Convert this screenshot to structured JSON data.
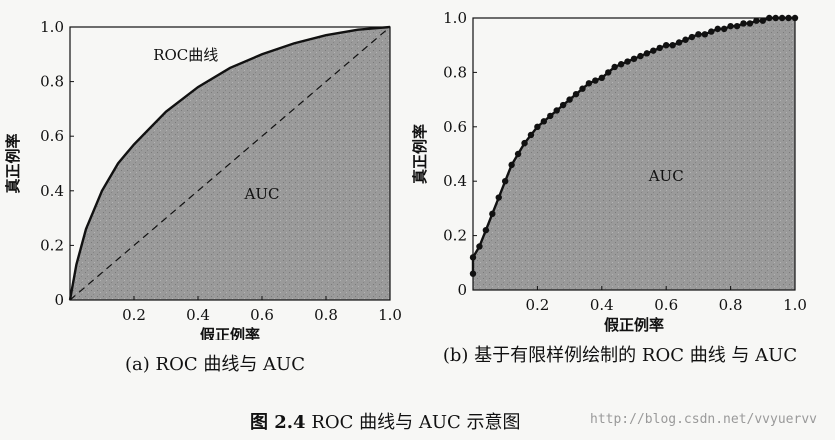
{
  "chart_data": [
    {
      "type": "area",
      "subcaption": "(a) ROC 曲线与 AUC",
      "xlabel": "假正例率",
      "ylabel": "真正例率",
      "xlim": [
        0,
        1
      ],
      "ylim": [
        0,
        1
      ],
      "xticks": [
        "0.2",
        "0.4",
        "0.6",
        "0.8",
        "1.0"
      ],
      "yticks": [
        "0",
        "0.2",
        "0.4",
        "0.6",
        "0.8",
        "1.0"
      ],
      "annotations": {
        "curve": "ROC曲线",
        "area": "AUC"
      },
      "series": [
        {
          "x": [
            0,
            0.02,
            0.05,
            0.1,
            0.15,
            0.2,
            0.3,
            0.4,
            0.5,
            0.6,
            0.7,
            0.8,
            0.9,
            1.0
          ],
          "y": [
            0,
            0.13,
            0.26,
            0.4,
            0.5,
            0.57,
            0.69,
            0.78,
            0.85,
            0.9,
            0.94,
            0.97,
            0.99,
            1.0
          ]
        },
        {
          "style": "dashed",
          "x": [
            0,
            1
          ],
          "y": [
            0,
            1
          ]
        }
      ],
      "grid": false
    },
    {
      "type": "line",
      "subcaption": "(b) 基于有限样例绘制的 ROC 曲线 与 AUC",
      "xlabel": "假正例率",
      "ylabel": "真正例率",
      "xlim": [
        0,
        1
      ],
      "ylim": [
        0,
        1
      ],
      "xticks": [
        "0.2",
        "0.4",
        "0.6",
        "0.8",
        "1.0"
      ],
      "yticks": [
        "0",
        "0.2",
        "0.4",
        "0.6",
        "0.8",
        "1.0"
      ],
      "annotations": {
        "area": "AUC"
      },
      "series": [
        {
          "style": "step-with-markers",
          "x": [
            0,
            0,
            0.02,
            0.04,
            0.06,
            0.08,
            0.1,
            0.12,
            0.14,
            0.16,
            0.18,
            0.2,
            0.22,
            0.24,
            0.26,
            0.28,
            0.3,
            0.32,
            0.34,
            0.36,
            0.38,
            0.4,
            0.42,
            0.44,
            0.46,
            0.48,
            0.5,
            0.52,
            0.54,
            0.56,
            0.58,
            0.6,
            0.62,
            0.64,
            0.66,
            0.68,
            0.7,
            0.72,
            0.74,
            0.76,
            0.78,
            0.8,
            0.82,
            0.84,
            0.86,
            0.88,
            0.9,
            0.92,
            0.94,
            0.96,
            0.98,
            1.0
          ],
          "y": [
            0.06,
            0.12,
            0.16,
            0.22,
            0.28,
            0.34,
            0.4,
            0.46,
            0.5,
            0.54,
            0.57,
            0.6,
            0.62,
            0.64,
            0.66,
            0.68,
            0.7,
            0.72,
            0.74,
            0.76,
            0.77,
            0.78,
            0.8,
            0.82,
            0.83,
            0.84,
            0.85,
            0.86,
            0.87,
            0.88,
            0.89,
            0.9,
            0.9,
            0.91,
            0.92,
            0.93,
            0.94,
            0.94,
            0.95,
            0.96,
            0.96,
            0.97,
            0.97,
            0.98,
            0.98,
            0.99,
            0.99,
            1.0,
            1.0,
            1.0,
            1.0,
            1.0
          ]
        }
      ],
      "grid": false
    }
  ],
  "figure_caption": {
    "number": "图 2.4",
    "text": "ROC 曲线与 AUC 示意图"
  },
  "watermark": "http://blog.csdn.net/vvyuervv",
  "colors": {
    "area_fill": "#9a9a9a",
    "curve": "#111111",
    "background": "#f7f7f5"
  }
}
